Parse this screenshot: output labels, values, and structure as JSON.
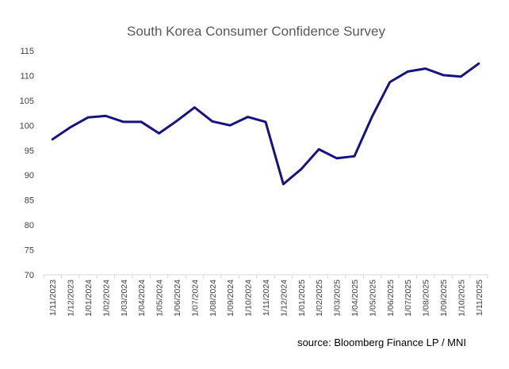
{
  "chart_data": {
    "type": "line",
    "title": "South Korea Consumer Confidence Survey",
    "source": "source:  Bloomberg Finance LP /  MNI",
    "xlabel": "",
    "ylabel": "",
    "ylim": [
      70,
      115
    ],
    "yticks": [
      70,
      75,
      80,
      85,
      90,
      95,
      100,
      105,
      110,
      115
    ],
    "grid": false,
    "legend": "none",
    "colors": {
      "line": "#14137f",
      "axis": "#d9d9d9",
      "text": "#404040",
      "title": "#595959"
    },
    "categories": [
      "1/11/2023",
      "1/12/2023",
      "1/01/2024",
      "1/02/2024",
      "1/03/2024",
      "1/04/2024",
      "1/05/2024",
      "1/06/2024",
      "1/07/2024",
      "1/08/2024",
      "1/09/2024",
      "1/10/2024",
      "1/11/2024",
      "1/12/2024",
      "1/01/2025",
      "1/02/2025",
      "1/03/2025",
      "1/04/2025",
      "1/05/2025",
      "1/06/2025",
      "1/07/2025",
      "1/08/2025",
      "1/09/2025",
      "1/10/2025",
      "1/11/2025"
    ],
    "series": [
      {
        "name": "Consumer Confidence",
        "values": [
          97.2,
          99.6,
          101.6,
          101.9,
          100.7,
          100.7,
          98.4,
          100.9,
          103.6,
          100.8,
          100.0,
          101.7,
          100.7,
          88.2,
          91.2,
          95.2,
          93.4,
          93.8,
          101.8,
          108.7,
          110.8,
          111.4,
          110.1,
          109.8,
          112.4
        ]
      }
    ]
  }
}
